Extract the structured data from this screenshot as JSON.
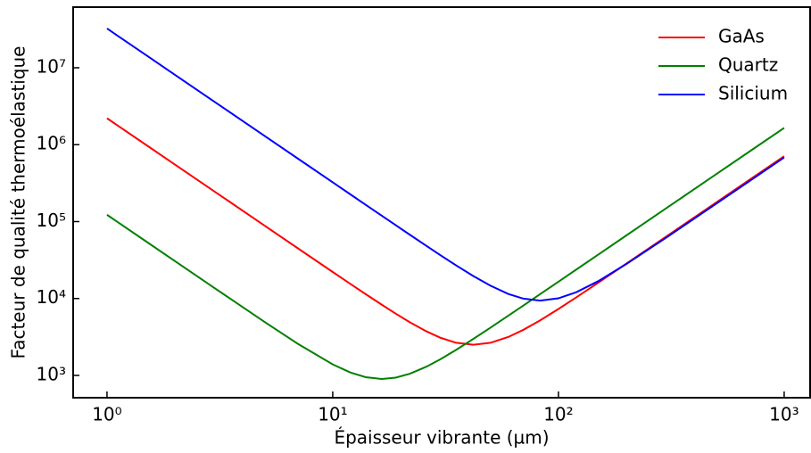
{
  "chart_data": {
    "type": "line",
    "xlabel": "Épaisseur vibrante (µm)",
    "ylabel": "Facteur de qualité thermoélastique",
    "x": [
      1,
      1.5,
      2,
      3,
      5,
      7,
      10,
      12,
      14,
      16.5,
      19,
      22,
      26,
      30,
      35,
      42,
      50,
      60,
      70,
      83,
      100,
      120,
      150,
      200,
      300,
      500,
      700,
      1000
    ],
    "series": [
      {
        "name": "GaAs",
        "color": "#ff0000",
        "values": [
          2205000,
          980000,
          551250,
          245000,
          88200,
          45035,
          22121,
          15414,
          11389,
          8292,
          6364,
          4899,
          3741,
          3088,
          2668,
          2500,
          2654,
          3164,
          3922,
          5202,
          7307,
          10357,
          16040,
          28400,
          63800,
          177200,
          347200,
          708600
        ]
      },
      {
        "name": "Quartz",
        "color": "#008000",
        "values": [
          122514,
          54451,
          30635,
          13627,
          4942,
          2581,
          1390,
          1089,
          949,
          900,
          936,
          1053,
          1299,
          1624,
          2125,
          2985,
          4181,
          5985,
          8124,
          11403,
          16542,
          23802,
          37190,
          66116,
          148760,
          413220,
          810000,
          1652900
        ]
      },
      {
        "name": "Silicium",
        "color": "#0000ff",
        "values": [
          32378300,
          14390500,
          8094600,
          3597600,
          1295100,
          660800,
          323850,
          224950,
          165330,
          119100,
          89930,
          67230,
          48360,
          36590,
          27270,
          19560,
          14660,
          11450,
          9951,
          9400,
          10060,
          12070,
          16790,
          28100,
          61760,
          170690,
          334400,
          682300
        ]
      }
    ],
    "xscale": "log",
    "yscale": "log",
    "xlim": [
      0.708,
      1303
    ],
    "ylim": [
      513,
      61400000
    ],
    "xticks": [
      {
        "value": 1,
        "label": "10⁰"
      },
      {
        "value": 10,
        "label": "10¹"
      },
      {
        "value": 100,
        "label": "10²"
      },
      {
        "value": 1000,
        "label": "10³"
      }
    ],
    "yticks": [
      {
        "value": 1000,
        "label": "10³"
      },
      {
        "value": 10000,
        "label": "10⁴"
      },
      {
        "value": 100000,
        "label": "10⁵"
      },
      {
        "value": 1000000,
        "label": "10⁶"
      },
      {
        "value": 10000000,
        "label": "10⁷"
      }
    ],
    "legend": "upper right",
    "grid": false
  }
}
